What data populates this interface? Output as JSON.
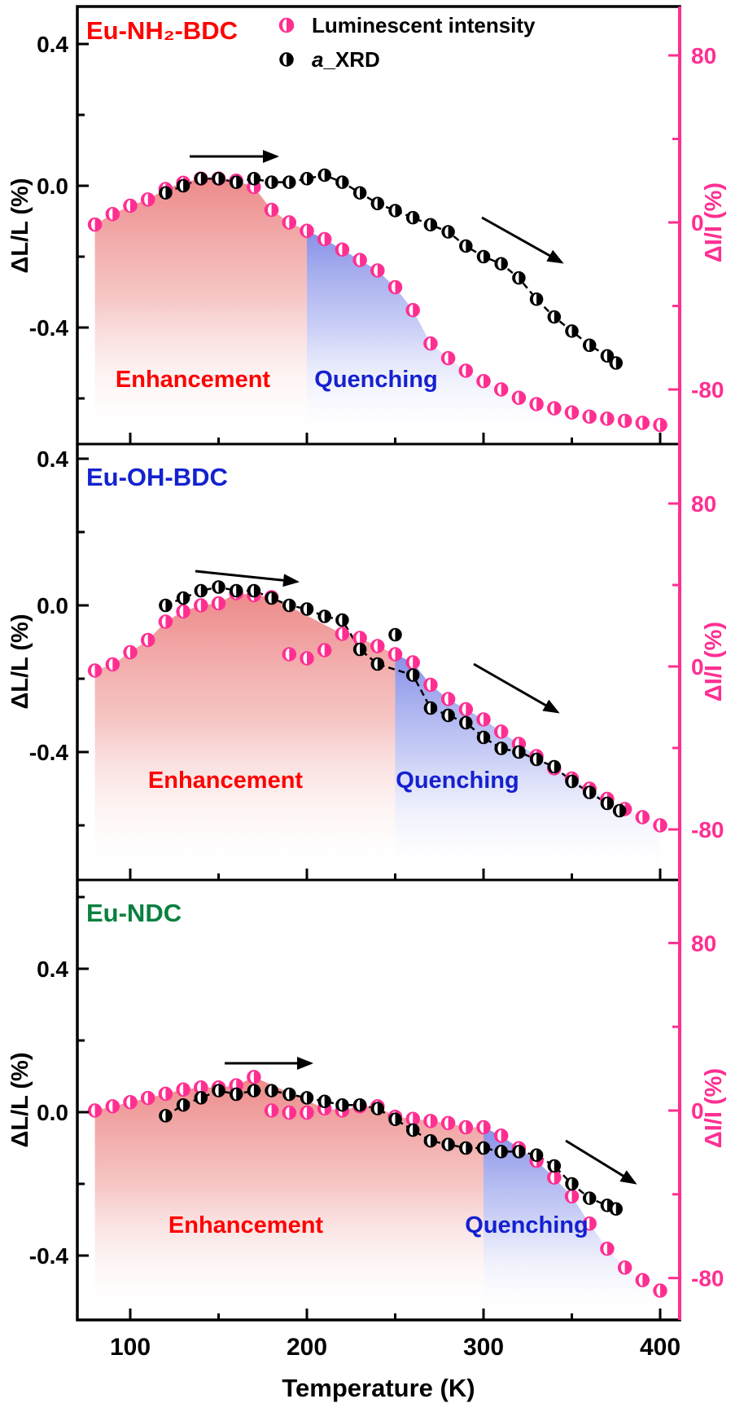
{
  "figure": {
    "x_axis": {
      "label": "Temperature (K)",
      "tick_labels": [
        "100",
        "200",
        "300",
        "400"
      ],
      "tick_values": [
        100,
        200,
        300,
        400
      ],
      "minor_tick_values": [
        150,
        250,
        350
      ],
      "range_K": [
        70,
        411
      ]
    },
    "left_axis": {
      "label": "ΔL/L (%)",
      "tick_labels": [
        "0.4",
        "0.0",
        "-0.4"
      ],
      "tick_values": [
        0.4,
        0.0,
        -0.4
      ],
      "minor_tick_values": [
        0.2,
        -0.2
      ],
      "color": "#000000"
    },
    "right_axis": {
      "label": "ΔI/I (%)",
      "tick_labels": [
        "80",
        "0",
        "-80"
      ],
      "tick_values": [
        80,
        0,
        -80
      ],
      "minor_tick_values": [
        40,
        -40
      ],
      "color": "#ff2f92"
    },
    "legend": {
      "items": [
        {
          "label": "Luminescent intensity",
          "marker": "half-filled-circle",
          "marker_color": "#ff2f92"
        },
        {
          "label": "a_XRD",
          "marker": "half-filled-circle",
          "marker_color": "#000000",
          "italic_first_char": true
        }
      ]
    },
    "colors": {
      "pink_accent": "#ff2f92",
      "enhancement_fill": "#ec8383",
      "quenching_fill": "#8089e6"
    }
  },
  "chart_data": [
    {
      "type": "scatter",
      "title": "Eu-NH₂-BDC",
      "title_color": "#ff0000",
      "regions": [
        {
          "label": "Enhancement",
          "color": "#ff0000",
          "range_K": [
            80,
            200
          ]
        },
        {
          "label": "Quenching",
          "color": "#1520cf",
          "range_K": [
            200,
            400
          ]
        }
      ],
      "left_ylim": [
        -0.73,
        0.51
      ],
      "right_ylim": [
        -106,
        103
      ],
      "series": [
        {
          "name": "Luminescent intensity",
          "axis": "right",
          "color": "#ff2f92",
          "x": [
            80,
            90,
            100,
            110,
            120,
            130,
            140,
            150,
            160,
            170,
            180,
            190,
            200,
            210,
            220,
            230,
            240,
            250,
            260,
            270,
            280,
            290,
            300,
            310,
            320,
            330,
            340,
            350,
            360,
            370,
            380,
            390,
            400
          ],
          "y": [
            -1,
            4,
            8,
            11,
            16,
            19,
            21,
            21,
            20,
            17,
            6,
            0,
            -4,
            -8,
            -13,
            -18,
            -23,
            -31,
            -42,
            -58,
            -65,
            -71,
            -76,
            -80,
            -84,
            -87,
            -89,
            -91,
            -93,
            -94,
            -95,
            -96,
            -97
          ]
        },
        {
          "name": "a_XRD",
          "axis": "left",
          "color": "#000000",
          "x": [
            120,
            130,
            140,
            150,
            160,
            170,
            180,
            190,
            200,
            210,
            220,
            230,
            240,
            250,
            260,
            270,
            280,
            290,
            300,
            310,
            320,
            330,
            340,
            350,
            360,
            370,
            375
          ],
          "y": [
            -0.02,
            0.0,
            0.02,
            0.02,
            0.01,
            0.02,
            0.01,
            0.01,
            0.02,
            0.03,
            0.01,
            -0.02,
            -0.05,
            -0.07,
            -0.09,
            -0.11,
            -0.13,
            -0.17,
            -0.2,
            -0.22,
            -0.26,
            -0.32,
            -0.37,
            -0.41,
            -0.45,
            -0.48,
            -0.5
          ]
        }
      ]
    },
    {
      "type": "scatter",
      "title": "Eu-OH-BDC",
      "title_color": "#1322cf",
      "regions": [
        {
          "label": "Enhancement",
          "color": "#ff0000",
          "range_K": [
            80,
            250
          ]
        },
        {
          "label": "Quenching",
          "color": "#1520cf",
          "range_K": [
            250,
            400
          ]
        }
      ],
      "left_ylim": [
        -0.75,
        0.44
      ],
      "right_ylim": [
        -105,
        103
      ],
      "series": [
        {
          "name": "Luminescent intensity",
          "axis": "right",
          "color": "#ff2f92",
          "x": [
            80,
            90,
            100,
            110,
            120,
            130,
            140,
            150,
            160,
            170,
            180,
            190,
            200,
            210,
            220,
            230,
            240,
            250,
            260,
            270,
            280,
            290,
            300,
            310,
            320,
            330,
            340,
            350,
            360,
            370,
            380,
            390,
            400
          ],
          "y": [
            -2,
            1,
            7,
            13,
            22,
            27,
            30,
            31,
            36,
            35,
            34,
            6,
            4,
            8,
            16,
            14,
            10,
            6,
            2,
            -9,
            -16,
            -21,
            -26,
            -32,
            -38,
            -44,
            -50,
            -55,
            -60,
            -65,
            -70,
            -74,
            -78
          ]
        },
        {
          "name": "a_XRD",
          "axis": "left",
          "color": "#000000",
          "x": [
            120,
            130,
            140,
            150,
            160,
            170,
            180,
            190,
            200,
            210,
            220,
            230,
            240,
            250,
            260,
            270,
            280,
            290,
            300,
            310,
            320,
            330,
            340,
            350,
            360,
            370,
            377
          ],
          "y": [
            0.0,
            0.02,
            0.04,
            0.05,
            0.04,
            0.04,
            0.02,
            0.0,
            -0.01,
            -0.03,
            -0.04,
            -0.12,
            -0.16,
            -0.08,
            -0.19,
            -0.28,
            -0.3,
            -0.32,
            -0.36,
            -0.39,
            -0.4,
            -0.42,
            -0.44,
            -0.48,
            -0.51,
            -0.54,
            -0.56
          ]
        }
      ]
    },
    {
      "type": "scatter",
      "title": "Eu-NDC",
      "title_color": "#0a8040",
      "regions": [
        {
          "label": "Enhancement",
          "color": "#ff0000",
          "range_K": [
            80,
            300
          ]
        },
        {
          "label": "Quenching",
          "color": "#1520cf",
          "range_K": [
            300,
            400
          ]
        }
      ],
      "left_ylim": [
        -0.65,
        0.58
      ],
      "right_ylim": [
        -100,
        110
      ],
      "series": [
        {
          "name": "Luminescent intensity",
          "axis": "right",
          "color": "#ff2f92",
          "x": [
            80,
            90,
            100,
            110,
            120,
            130,
            140,
            150,
            160,
            170,
            180,
            190,
            200,
            210,
            220,
            230,
            240,
            250,
            260,
            270,
            280,
            290,
            300,
            310,
            320,
            330,
            340,
            350,
            360,
            370,
            380,
            390,
            400
          ],
          "y": [
            0,
            2,
            4,
            6,
            8,
            10,
            11,
            11,
            12,
            16,
            0,
            -1,
            -1,
            1,
            0,
            2,
            2,
            -3,
            -4,
            -5,
            -6,
            -8,
            -8,
            -12,
            -18,
            -24,
            -32,
            -41,
            -54,
            -66,
            -75,
            -81,
            -86
          ]
        },
        {
          "name": "a_XRD",
          "axis": "left",
          "color": "#000000",
          "x": [
            120,
            130,
            140,
            150,
            160,
            170,
            180,
            190,
            200,
            210,
            220,
            230,
            240,
            250,
            260,
            270,
            280,
            290,
            300,
            310,
            320,
            330,
            340,
            350,
            360,
            370,
            375
          ],
          "y": [
            -0.01,
            0.02,
            0.04,
            0.06,
            0.05,
            0.06,
            0.06,
            0.05,
            0.04,
            0.03,
            0.02,
            0.02,
            0.01,
            -0.02,
            -0.05,
            -0.08,
            -0.09,
            -0.1,
            -0.1,
            -0.11,
            -0.11,
            -0.12,
            -0.15,
            -0.2,
            -0.24,
            -0.26,
            -0.27
          ]
        }
      ]
    }
  ]
}
